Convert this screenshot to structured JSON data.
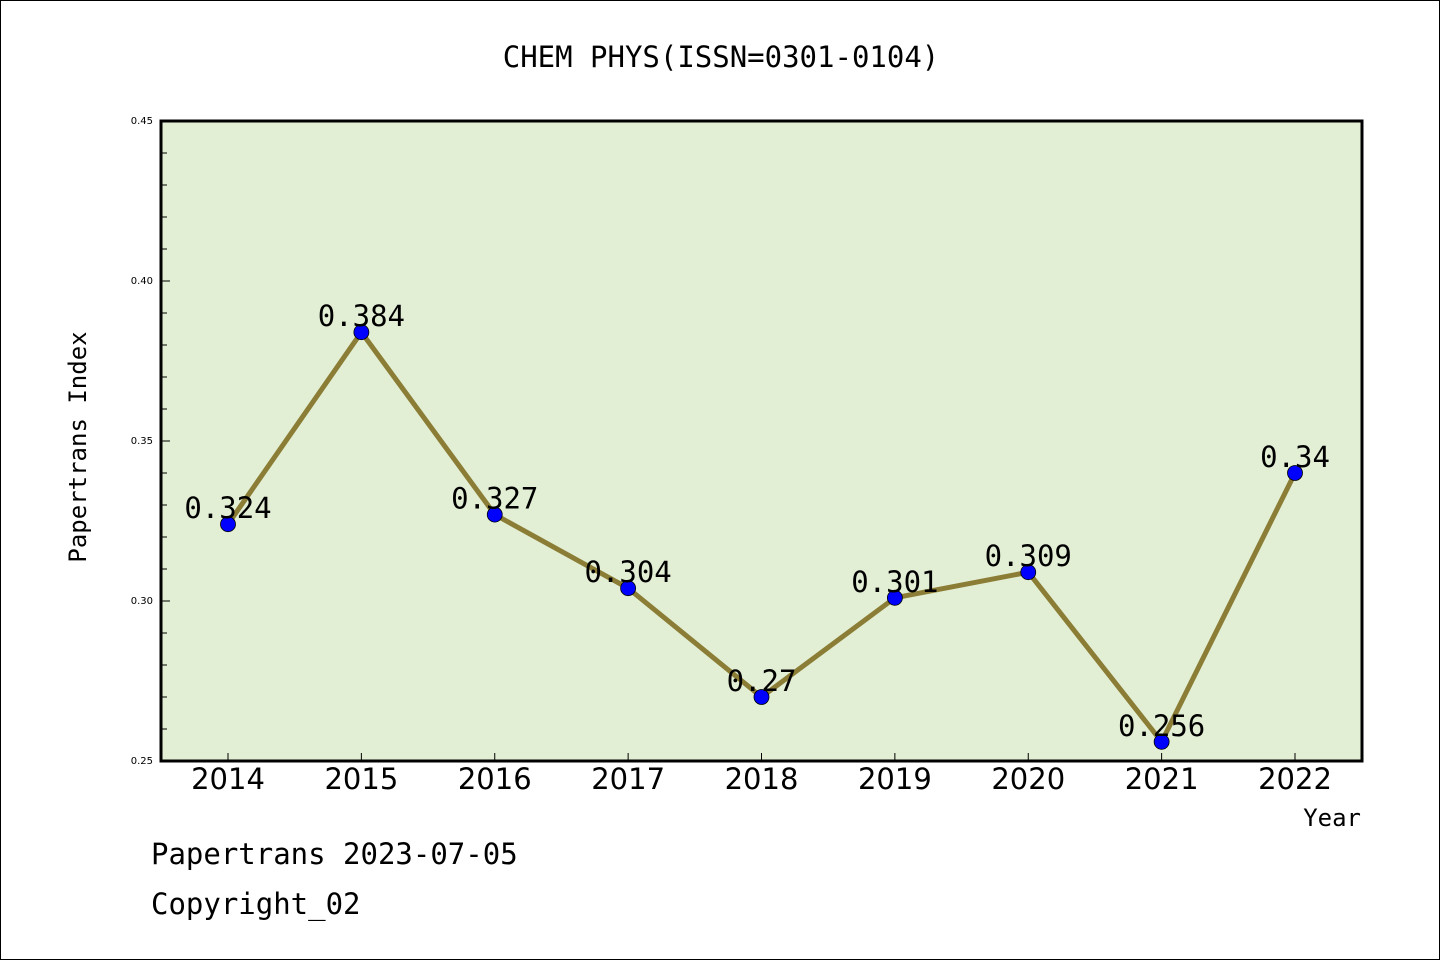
{
  "chart_data": {
    "type": "line",
    "title": "CHEM PHYS(ISSN=0301-0104)",
    "xlabel": "Year",
    "ylabel": "Papertrans Index",
    "categories": [
      "2014",
      "2015",
      "2016",
      "2017",
      "2018",
      "2019",
      "2020",
      "2021",
      "2022"
    ],
    "series": [
      {
        "values": [
          0.324,
          0.384,
          0.327,
          0.304,
          0.27,
          0.301,
          0.309,
          0.256,
          0.34
        ]
      }
    ],
    "data_labels": [
      "0.324",
      "0.384",
      "0.327",
      "0.304",
      "0.27",
      "0.301",
      "0.309",
      "0.256",
      "0.34"
    ],
    "ylim": [
      0.25,
      0.45
    ],
    "yticks": [
      "0.25",
      "0.30",
      "0.35",
      "0.40",
      "0.45"
    ],
    "grid": false,
    "colors": {
      "plot_background": "#e2efd4",
      "line": "#8b7d35",
      "marker": "#0000ff"
    }
  },
  "footer": {
    "line1": "Papertrans 2023-07-05",
    "line2": "Copyright_02"
  }
}
